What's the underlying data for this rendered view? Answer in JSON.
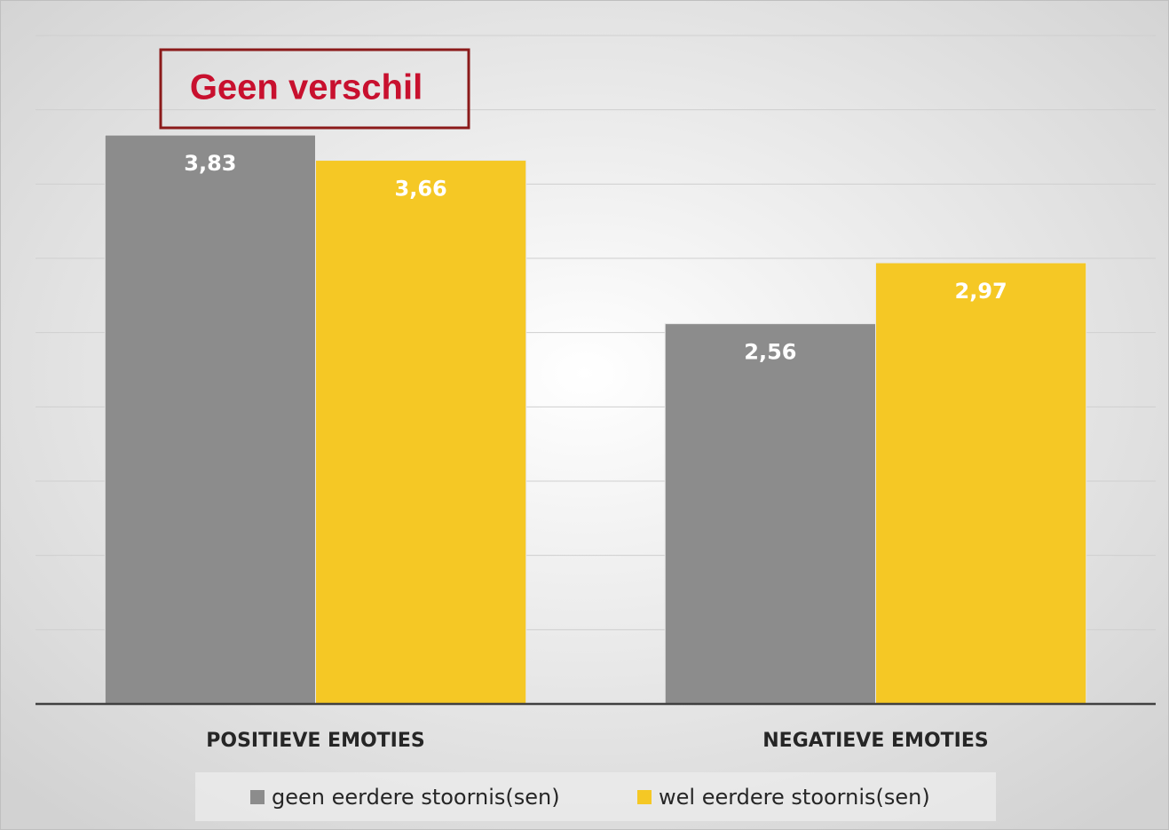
{
  "chart_data": {
    "type": "bar",
    "annotation": "Geen verschil",
    "categories": [
      "POSITIEVE EMOTIES",
      "NEGATIEVE EMOTIES"
    ],
    "series": [
      {
        "name": "geen eerdere stoornis(sen)",
        "color": "#8c8c8c",
        "values": [
          3.83,
          2.56
        ],
        "value_labels": [
          "3,83",
          "2,56"
        ]
      },
      {
        "name": "wel eerdere stoornis(sen)",
        "color": "#f5c825",
        "values": [
          3.66,
          2.97
        ],
        "value_labels": [
          "3,66",
          "2,97"
        ]
      }
    ],
    "ylim": [
      0,
      4.5
    ],
    "yticks": [
      0,
      0.5,
      1,
      1.5,
      2,
      2.5,
      3,
      3.5,
      4,
      4.5
    ],
    "grid": true,
    "legend": "bottom"
  }
}
